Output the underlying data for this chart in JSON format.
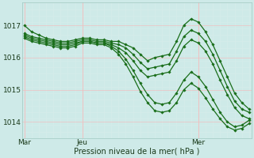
{
  "bg_color": "#ceeae8",
  "grid_major_color": "#f0c0c0",
  "grid_minor_color": "#d8ecea",
  "line_color": "#1a6e1a",
  "marker": "D",
  "markersize": 1.8,
  "linewidth": 0.9,
  "xlabel": "Pression niveau de la mer( hPa )",
  "xtick_labels": [
    "Mar",
    "Jeu",
    "Mer"
  ],
  "xtick_positions": [
    0,
    8,
    24
  ],
  "ytick_labels": [
    "1014",
    "1015",
    "1016",
    "1017"
  ],
  "ytick_positions": [
    1014,
    1015,
    1016,
    1017
  ],
  "ylim": [
    1013.5,
    1017.7
  ],
  "xlim": [
    -0.3,
    31.3
  ],
  "series": [
    [
      1017.0,
      1016.8,
      1016.7,
      1016.6,
      1016.55,
      1016.5,
      1016.5,
      1016.55,
      1016.6,
      1016.6,
      1016.55,
      1016.55,
      1016.5,
      1016.5,
      1016.4,
      1016.3,
      1016.1,
      1015.9,
      1016.0,
      1016.05,
      1016.1,
      1016.5,
      1017.0,
      1017.2,
      1017.1,
      1016.8,
      1016.4,
      1015.9,
      1015.4,
      1014.9,
      1014.6,
      1014.4
    ],
    [
      1016.75,
      1016.65,
      1016.6,
      1016.55,
      1016.5,
      1016.45,
      1016.45,
      1016.5,
      1016.55,
      1016.55,
      1016.5,
      1016.5,
      1016.45,
      1016.4,
      1016.3,
      1016.1,
      1015.85,
      1015.65,
      1015.7,
      1015.75,
      1015.8,
      1016.2,
      1016.65,
      1016.85,
      1016.75,
      1016.5,
      1016.1,
      1015.6,
      1015.1,
      1014.65,
      1014.4,
      1014.3
    ],
    [
      1016.7,
      1016.6,
      1016.55,
      1016.5,
      1016.45,
      1016.4,
      1016.4,
      1016.45,
      1016.5,
      1016.5,
      1016.45,
      1016.45,
      1016.4,
      1016.3,
      1016.15,
      1015.9,
      1015.6,
      1015.4,
      1015.45,
      1015.5,
      1015.55,
      1015.9,
      1016.35,
      1016.55,
      1016.45,
      1016.2,
      1015.8,
      1015.3,
      1014.85,
      1014.45,
      1014.2,
      1014.1
    ],
    [
      1016.65,
      1016.55,
      1016.5,
      1016.45,
      1016.4,
      1016.35,
      1016.35,
      1016.4,
      1016.5,
      1016.5,
      1016.45,
      1016.45,
      1016.35,
      1016.2,
      1015.95,
      1015.6,
      1015.2,
      1014.85,
      1014.6,
      1014.55,
      1014.6,
      1014.9,
      1015.3,
      1015.55,
      1015.4,
      1015.1,
      1014.7,
      1014.3,
      1014.0,
      1013.85,
      1013.9,
      1014.05
    ],
    [
      1016.6,
      1016.5,
      1016.45,
      1016.4,
      1016.35,
      1016.3,
      1016.3,
      1016.35,
      1016.45,
      1016.45,
      1016.4,
      1016.4,
      1016.3,
      1016.1,
      1015.8,
      1015.4,
      1014.95,
      1014.6,
      1014.35,
      1014.3,
      1014.35,
      1014.6,
      1015.0,
      1015.2,
      1015.05,
      1014.75,
      1014.4,
      1014.1,
      1013.85,
      1013.75,
      1013.8,
      1013.95
    ]
  ],
  "vlines": [
    0,
    8,
    24
  ],
  "hlines_minor_step": 0.2
}
